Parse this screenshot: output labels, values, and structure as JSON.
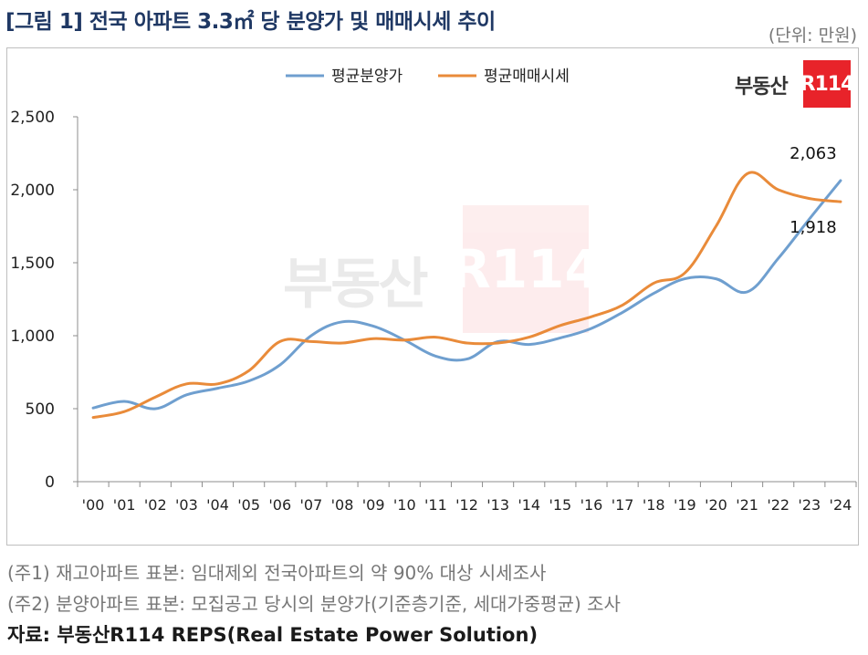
{
  "header": {
    "title": "[그림 1] 전국 아파트 3.3㎡ 당 분양가 및 매매시세 추이",
    "unit": "(단위: 만원)"
  },
  "logo": {
    "text": "부동산",
    "badge": "R114"
  },
  "colors": {
    "presale": "#6f9fcf",
    "market": "#e98b3a",
    "title": "#1f3864",
    "logo_red": "#e8232a"
  },
  "chart_data": {
    "type": "line",
    "categories": [
      "'00",
      "'01",
      "'02",
      "'03",
      "'04",
      "'05",
      "'06",
      "'07",
      "'08",
      "'09",
      "'10",
      "'11",
      "'12",
      "'13",
      "'14",
      "'15",
      "'16",
      "'17",
      "'18",
      "'19",
      "'20",
      "'21",
      "'22",
      "'23",
      "'24"
    ],
    "series": [
      {
        "name": "평균분양가",
        "color": "#6f9fcf",
        "values": [
          505,
          550,
          500,
          595,
          640,
          690,
          800,
          1000,
          1095,
          1065,
          970,
          860,
          840,
          960,
          940,
          985,
          1050,
          1160,
          1290,
          1390,
          1390,
          1300,
          1530,
          1800,
          2063
        ]
      },
      {
        "name": "평균매매시세",
        "color": "#e98b3a",
        "values": [
          440,
          480,
          580,
          670,
          670,
          760,
          960,
          960,
          950,
          980,
          970,
          990,
          950,
          950,
          990,
          1070,
          1130,
          1210,
          1360,
          1430,
          1750,
          2110,
          2000,
          1940,
          1918
        ]
      }
    ],
    "data_labels": [
      {
        "series": 0,
        "index": 24,
        "text": "2,063"
      },
      {
        "series": 1,
        "index": 24,
        "text": "1,918"
      }
    ],
    "yticks": [
      0,
      500,
      1000,
      1500,
      2000,
      2500
    ],
    "ytick_labels": [
      "0",
      "500",
      "1,000",
      "1,500",
      "2,000",
      "2,500"
    ],
    "ylim": [
      0,
      2500
    ],
    "legend_position": "top-center",
    "grid": false
  },
  "notes": [
    "(주1) 재고아파트 표본: 임대제외 전국아파트의 약 90% 대상 시세조사",
    "(주2) 분양아파트 표본: 모집공고 당시의 분양가(기준층기준, 세대가중평균) 조사"
  ],
  "source": "자료: 부동산R114 REPS(Real Estate Power Solution)"
}
